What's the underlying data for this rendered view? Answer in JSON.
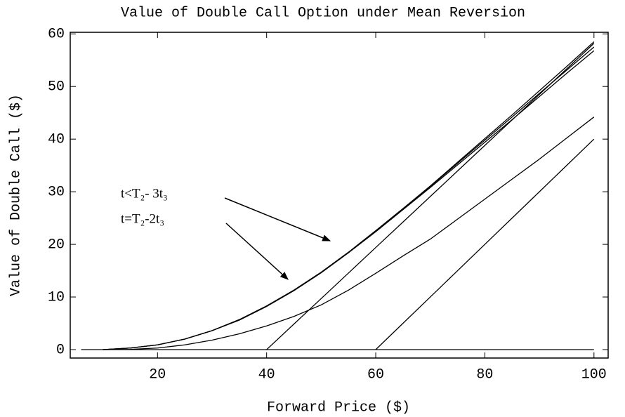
{
  "chart_data": {
    "type": "line",
    "title": "Value of Double Call Option under Mean Reversion",
    "x_label": "Forward Price  ($)",
    "y_label": "Value of Double Call ($)",
    "x": [
      6,
      10,
      15,
      20,
      25,
      30,
      35,
      40,
      45,
      50,
      55,
      60,
      65,
      70,
      75,
      80,
      85,
      90,
      95,
      100
    ],
    "series": [
      {
        "color": "#000000",
        "values": [
          0,
          0,
          0,
          0,
          0,
          0,
          0,
          0,
          0,
          0,
          0,
          0,
          0,
          0,
          0,
          0,
          0,
          0,
          0,
          0
        ]
      },
      {
        "color": "#000000",
        "values": [
          null,
          null,
          null,
          null,
          null,
          null,
          null,
          0,
          4.85,
          9.7,
          14.55,
          19.4,
          24.25,
          29.1,
          33.95,
          38.8,
          43.65,
          48.5,
          53.35,
          58.2
        ]
      },
      {
        "color": "#000000",
        "values": [
          null,
          null,
          null,
          null,
          null,
          null,
          null,
          null,
          null,
          null,
          null,
          0,
          5,
          10,
          15,
          20,
          25,
          30,
          35,
          40
        ]
      },
      {
        "color": "#000000",
        "values": [
          null,
          0,
          0.05,
          0.3,
          0.9,
          1.8,
          3,
          4.5,
          6.3,
          8.5,
          11.3,
          14.5,
          17.8,
          21,
          24.8,
          28.6,
          32.4,
          36.2,
          40.2,
          44.2
        ]
      },
      {
        "color": "#000000",
        "values": [
          null,
          0,
          0.3,
          0.9,
          2,
          3.6,
          5.7,
          8.3,
          11.3,
          14.7,
          18.5,
          22.6,
          26.8,
          31.1,
          35.6,
          40.1,
          44.6,
          49.2,
          53.8,
          58.5
        ]
      },
      {
        "color": "#000000",
        "values": [
          null,
          0,
          0.3,
          0.9,
          2,
          3.6,
          5.7,
          8.3,
          11.3,
          14.7,
          18.5,
          22.6,
          26.8,
          31,
          35.4,
          39.8,
          44.2,
          48.7,
          53.1,
          57.5
        ]
      },
      {
        "color": "#000000",
        "values": [
          null,
          0,
          0.3,
          0.9,
          2,
          3.6,
          5.6,
          8.2,
          11.2,
          14.6,
          18.4,
          22.4,
          26.6,
          30.8,
          35.1,
          39.4,
          43.7,
          48.1,
          52.5,
          56.8
        ]
      }
    ],
    "annotations": [
      "t<T₂- 3t₃",
      "t=T₂-2t₃"
    ],
    "xlim": [
      4,
      102.6
    ],
    "ylim": [
      -1.6,
      60.3
    ],
    "xticks": [
      20,
      40,
      60,
      80,
      100
    ],
    "yticks": [
      0,
      10,
      20,
      30,
      40,
      50,
      60
    ]
  }
}
